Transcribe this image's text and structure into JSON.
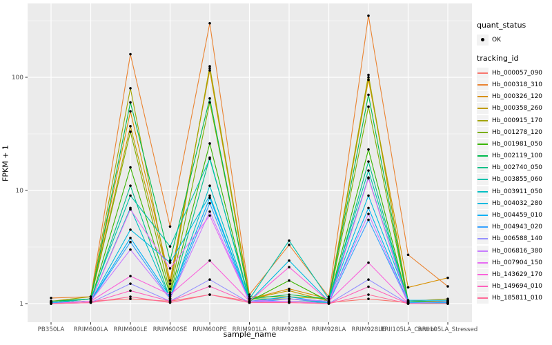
{
  "chart_data": {
    "type": "line",
    "title": "",
    "xlabel": "sample_name",
    "ylabel": "FPKM + 1",
    "y_scale": "log10",
    "y_ticks": [
      "1",
      "10",
      "100"
    ],
    "y_tick_values": [
      1,
      10,
      100
    ],
    "ylim": [
      0.95,
      470
    ],
    "grid": true,
    "legend_position": "right",
    "panel_bg": "#EBEBEB",
    "grid_color": "#FFFFFF",
    "tick_label_color": "#4D4D4D",
    "tick_mark_color": "#333333",
    "point_color": "#000000",
    "legend_quant_title": "quant_status",
    "legend_quant_items": [
      {
        "label": "OK",
        "symbol": "point"
      }
    ],
    "legend_series_title": "tracking_id",
    "categories": [
      "PB350LA",
      "RRIM600LA",
      "RRIM600LE",
      "RRIM600SE",
      "RRIM600PE",
      "RRIM901LA",
      "RRIM928BA",
      "RRIM928LA",
      "RRIM928LE",
      "RRII105LA_Control",
      "RRII105LA_Stressed"
    ],
    "series": [
      {
        "name": "Hb_000057_090",
        "color": "#F8766D",
        "values": [
          1.02,
          1.05,
          1.1,
          1.05,
          1.2,
          1.05,
          1.1,
          1.02,
          1.1,
          1.02,
          1.02
        ]
      },
      {
        "name": "Hb_000318_310",
        "color": "#EA8331",
        "values": [
          1.12,
          1.15,
          160,
          4.8,
          300,
          1.2,
          3.3,
          1.15,
          350,
          2.7,
          1.42
        ]
      },
      {
        "name": "Hb_000326_120",
        "color": "#D89000",
        "values": [
          1.05,
          1.1,
          50,
          1.6,
          115,
          1.1,
          1.35,
          1.1,
          95,
          1.39,
          1.69
        ]
      },
      {
        "name": "Hb_000358_260",
        "color": "#C09B00",
        "values": [
          1.02,
          1.1,
          37,
          1.5,
          120,
          1.1,
          1.3,
          1.05,
          100,
          1.05,
          1.1
        ]
      },
      {
        "name": "Hb_000915_170",
        "color": "#A3A500",
        "values": [
          1.05,
          1.15,
          80,
          1.35,
          125,
          1.15,
          1.15,
          1.1,
          105,
          1.05,
          1.05
        ]
      },
      {
        "name": "Hb_001278_120",
        "color": "#7CAE00",
        "values": [
          1.02,
          1.1,
          33,
          1.25,
          60,
          1.1,
          1.1,
          1.05,
          55,
          1.02,
          1.05
        ]
      },
      {
        "name": "Hb_001981_050",
        "color": "#39B600",
        "values": [
          1.02,
          1.05,
          16,
          1.2,
          26,
          1.05,
          1.6,
          1.05,
          23,
          1.02,
          1.02
        ]
      },
      {
        "name": "Hb_002119_100",
        "color": "#00BB4E",
        "values": [
          1.05,
          1.1,
          60,
          2.4,
          65,
          1.1,
          1.2,
          1.1,
          70,
          1.05,
          1.02
        ]
      },
      {
        "name": "Hb_002740_050",
        "color": "#00C087",
        "values": [
          1.02,
          1.05,
          11,
          1.1,
          19.5,
          1.05,
          1.05,
          1.02,
          18,
          1.02,
          1.02
        ]
      },
      {
        "name": "Hb_003855_060",
        "color": "#00C1AB",
        "values": [
          1.02,
          1.1,
          9,
          3.2,
          19,
          1.1,
          3.6,
          1.1,
          15,
          1.05,
          1.02
        ]
      },
      {
        "name": "Hb_003911_050",
        "color": "#00BFC4",
        "values": [
          1.02,
          1.05,
          7,
          1.1,
          11,
          1.05,
          1.1,
          1.05,
          13,
          1.02,
          1.02
        ]
      },
      {
        "name": "Hb_004032_280",
        "color": "#00BAE0",
        "values": [
          1.02,
          1.05,
          4.5,
          2.3,
          9,
          1.05,
          2.4,
          1.05,
          9,
          1.07,
          1.07
        ]
      },
      {
        "name": "Hb_004459_010",
        "color": "#00B0F6",
        "values": [
          1.02,
          1.05,
          3.8,
          1.15,
          8.6,
          1.05,
          1.15,
          1.02,
          7,
          1.02,
          1.02
        ]
      },
      {
        "name": "Hb_004943_020",
        "color": "#35A2FF",
        "values": [
          1.02,
          1.05,
          3.5,
          1.1,
          7.7,
          1.02,
          1.1,
          1.02,
          5.5,
          1.02,
          1.02
        ]
      },
      {
        "name": "Hb_006588_140",
        "color": "#9590FF",
        "values": [
          1.0,
          1.02,
          1.5,
          1.05,
          1.63,
          1.02,
          1.05,
          1.0,
          1.63,
          1.0,
          1.05
        ]
      },
      {
        "name": "Hb_006816_380",
        "color": "#C77CFF",
        "values": [
          1.0,
          1.05,
          3.0,
          1.1,
          6.5,
          1.05,
          1.1,
          1.05,
          6.2,
          1.0,
          1.0
        ]
      },
      {
        "name": "Hb_007904_150",
        "color": "#E76BF3",
        "values": [
          1.0,
          1.05,
          6.8,
          2.05,
          6.0,
          1.05,
          1.05,
          1.0,
          12.8,
          1.0,
          1.0
        ]
      },
      {
        "name": "Hb_143629_170",
        "color": "#FA62DB",
        "values": [
          1.0,
          1.05,
          1.75,
          1.2,
          2.4,
          1.05,
          2.1,
          1.05,
          2.3,
          1.0,
          1.0
        ]
      },
      {
        "name": "Hb_149694_010",
        "color": "#FF62BC",
        "values": [
          1.0,
          1.02,
          1.3,
          1.05,
          1.42,
          1.02,
          1.02,
          1.0,
          1.41,
          1.0,
          1.0
        ]
      },
      {
        "name": "Hb_185811_010",
        "color": "#FF6A98",
        "values": [
          1.0,
          1.02,
          1.15,
          1.02,
          1.2,
          1.02,
          1.02,
          1.0,
          1.2,
          1.0,
          1.0
        ]
      }
    ]
  }
}
